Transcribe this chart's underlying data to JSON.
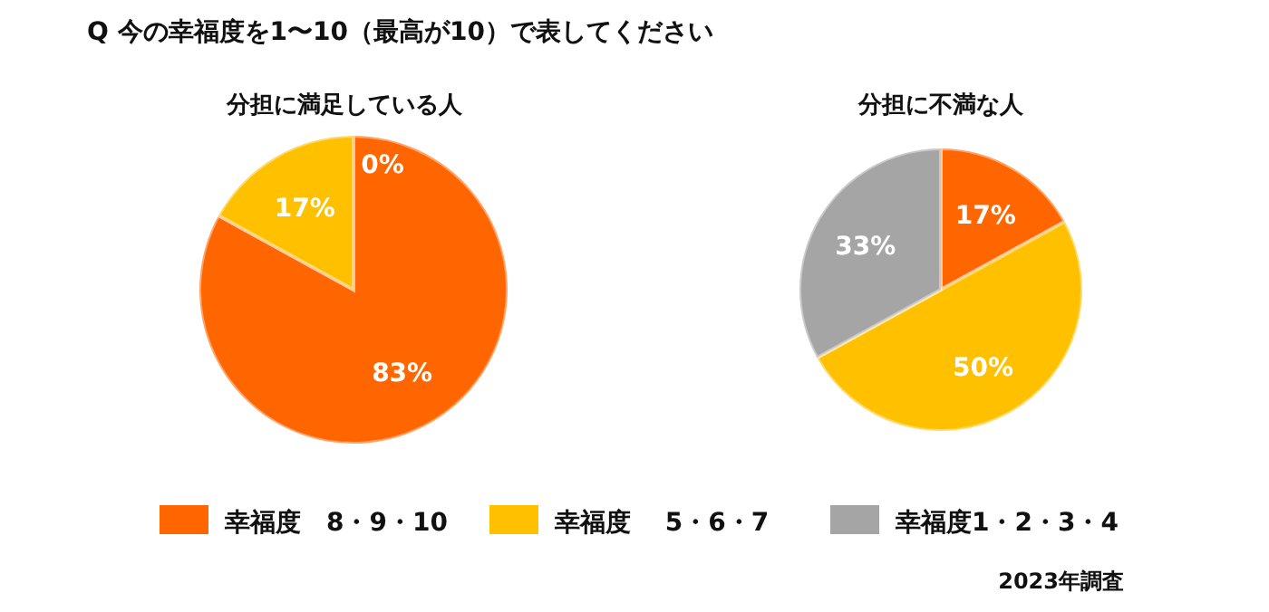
{
  "chart_data": [
    {
      "type": "pie",
      "title": "分担に満足している人",
      "categories": [
        "幸福度　8・9・10",
        "幸福度　 5・6・7",
        "幸福度1・2・3・4"
      ],
      "values": [
        83,
        17,
        0
      ],
      "value_labels": [
        "83%",
        "17%",
        "0%"
      ],
      "colors": [
        "#ff6600",
        "#ffc000",
        "#a5a5a5"
      ],
      "legend": "bottom",
      "annotations": [
        "Q 今の幸福度を1〜10（最高が10）で表してください"
      ]
    },
    {
      "type": "pie",
      "title": "分担に不満な人",
      "categories": [
        null,
        null,
        null
      ],
      "values": [
        17,
        50,
        33
      ],
      "value_labels": [
        "17%",
        "50%",
        "33%"
      ],
      "colors": [
        "#ff6600",
        "#ffc000",
        "#a5a5a5"
      ],
      "annotations": [
        "2023年調査"
      ]
    }
  ]
}
